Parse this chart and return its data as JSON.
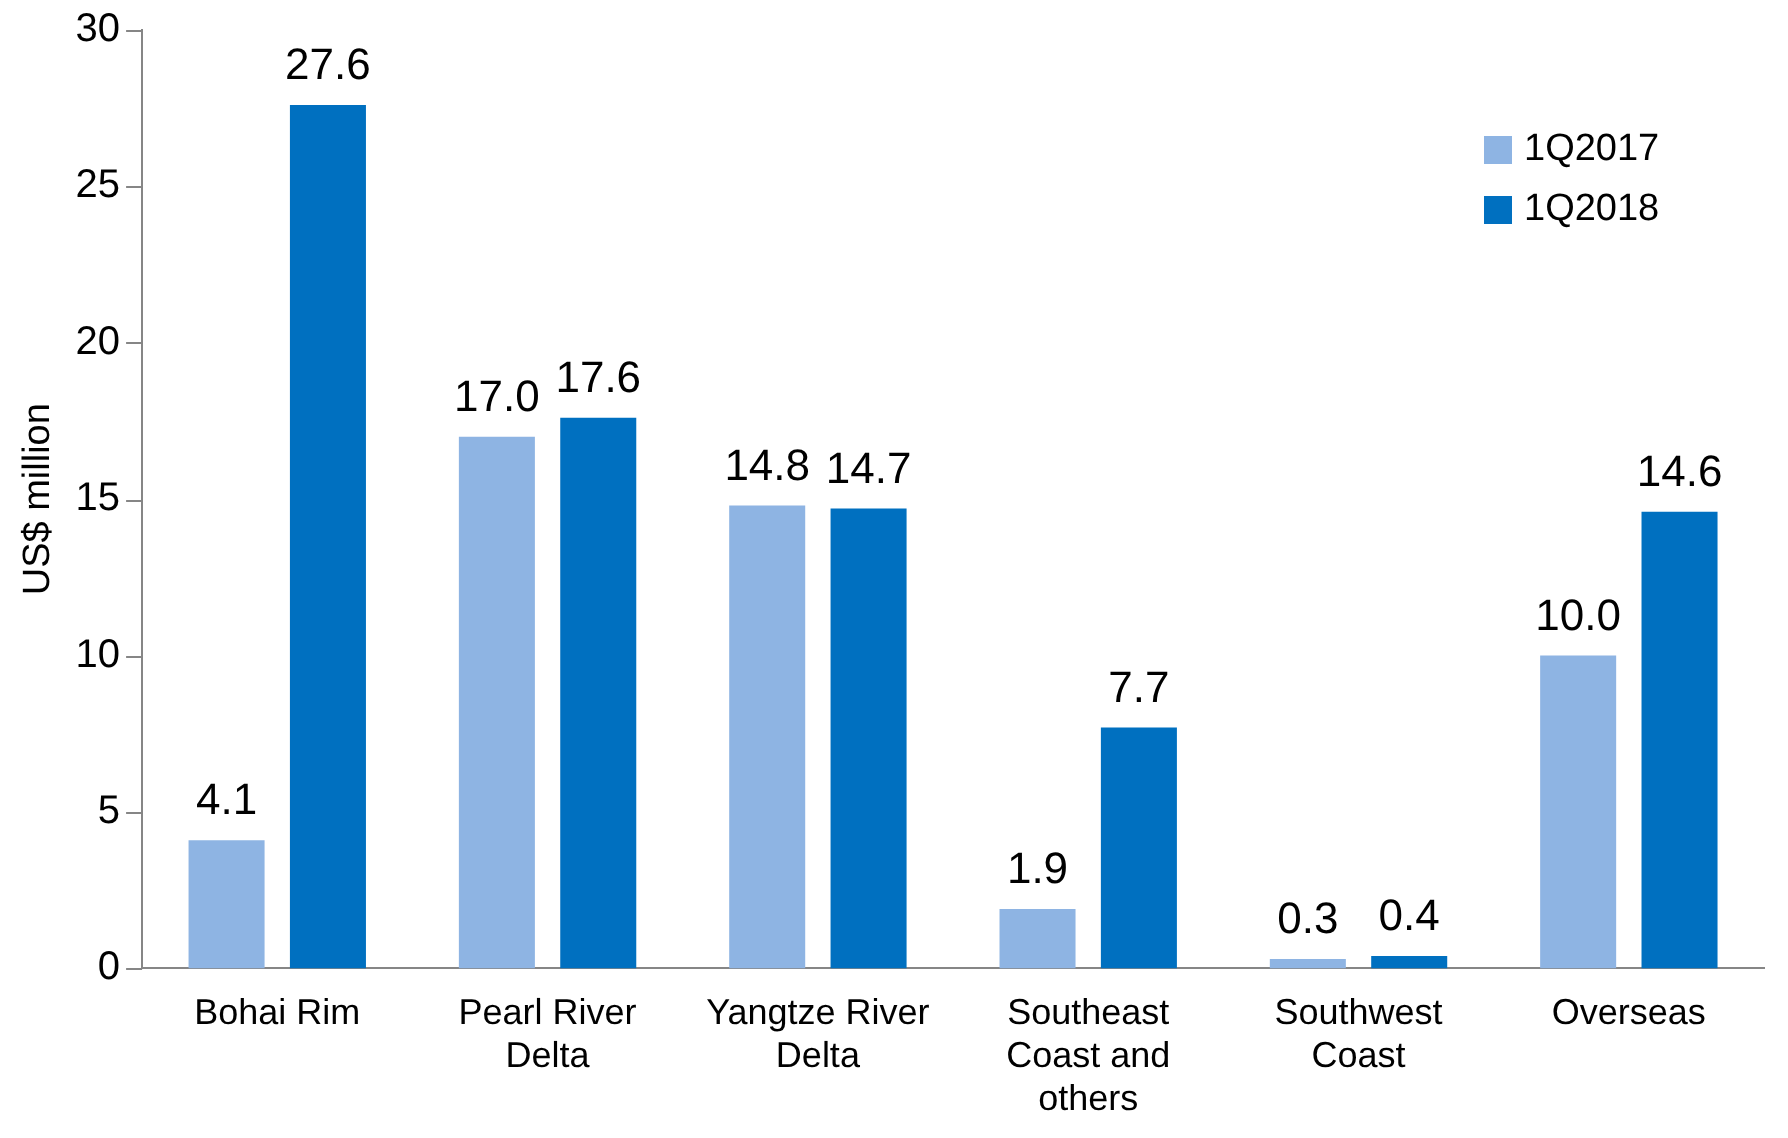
{
  "chart_data": {
    "type": "bar",
    "ylabel": "US$ million",
    "categories": [
      "Bohai Rim",
      "Pearl River Delta",
      "Yangtze River Delta",
      "Southeast Coast and others",
      "Southwest Coast",
      "Overseas"
    ],
    "series": [
      {
        "name": "1Q2017",
        "color": "#8eb4e3",
        "values": [
          4.1,
          17.0,
          14.8,
          1.9,
          0.3,
          10.0
        ],
        "value_labels": [
          "4.1",
          "17.0",
          "14.8",
          "1.9",
          "0.3",
          "10.0"
        ]
      },
      {
        "name": "1Q2018",
        "color": "#0070c0",
        "values": [
          27.6,
          17.6,
          14.7,
          7.7,
          0.4,
          14.6
        ],
        "value_labels": [
          "27.6",
          "17.6",
          "14.7",
          "7.7",
          "0.4",
          "14.6"
        ]
      }
    ],
    "ylim": [
      0,
      30
    ],
    "yticks": [
      0,
      5,
      10,
      15,
      20,
      25,
      30
    ],
    "grid": false,
    "legend": "top right"
  }
}
